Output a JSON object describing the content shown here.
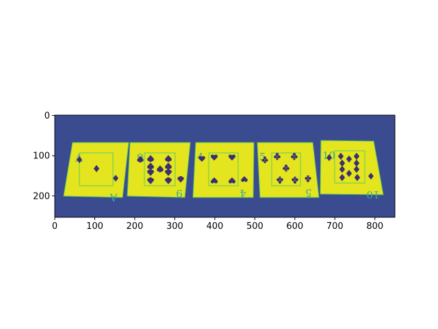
{
  "figure": {
    "description_type": "matplotlib imshow of five playing cards (viridis colormap)",
    "colors": {
      "background": "#3b4b8f",
      "card": "#e4e51f",
      "card_outline": "#5ec962",
      "pip": "#3b2f6e",
      "rank_text": "#3aa79a"
    }
  },
  "axes": {
    "x_ticks": [
      "0",
      "100",
      "200",
      "300",
      "400",
      "500",
      "600",
      "700",
      "800"
    ],
    "y_ticks": [
      "0",
      "100",
      "200"
    ],
    "xlim": [
      0,
      850
    ],
    "ylim": [
      255,
      0
    ],
    "y_inverted": true
  },
  "cards": [
    {
      "rank": "A",
      "suit": "diamond",
      "pips": 1
    },
    {
      "rank": "9",
      "suit": "spade",
      "pips": 9
    },
    {
      "rank": "4",
      "suit": "heart",
      "pips": 4
    },
    {
      "rank": "5",
      "suit": "club",
      "pips": 5
    },
    {
      "rank": "10",
      "suit": "diamond",
      "pips": 10
    }
  ]
}
